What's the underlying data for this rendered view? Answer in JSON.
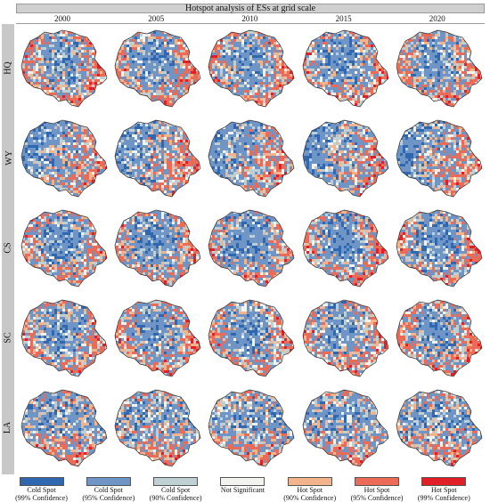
{
  "title": "Hotspot analysis of ESs at grid scale",
  "years": [
    "2000",
    "2005",
    "2010",
    "2015",
    "2020"
  ],
  "rows": [
    {
      "code": "HQ",
      "cold_pct": [
        50,
        52,
        50,
        52,
        52
      ]
    },
    {
      "code": "WY",
      "cold_pct": [
        42,
        40,
        40,
        42,
        38
      ]
    },
    {
      "code": "CS",
      "cold_pct": [
        55,
        55,
        58,
        55,
        55
      ]
    },
    {
      "code": "SC",
      "cold_pct": [
        52,
        48,
        55,
        52,
        50
      ]
    },
    {
      "code": "LA",
      "cold_pct": [
        40,
        42,
        42,
        42,
        42
      ]
    }
  ],
  "legend": [
    {
      "label": "Cold Spot\n(99% Confidence)",
      "color": "#2f68b0"
    },
    {
      "label": "Cold Spot\n(95% Confidence)",
      "color": "#6f95c6"
    },
    {
      "label": "Cold Spot\n(90% Confidence)",
      "color": "#bfd0d3"
    },
    {
      "label": "Not Significant",
      "color": "#f2f2ef"
    },
    {
      "label": "Hot Spot\n(90% Confidence)",
      "color": "#f3b48c"
    },
    {
      "label": "Hot Spot\n(95% Confidence)",
      "color": "#ec6b57"
    },
    {
      "label": "Hot Spot\n(99% Confidence)",
      "color": "#e21f26"
    }
  ]
}
